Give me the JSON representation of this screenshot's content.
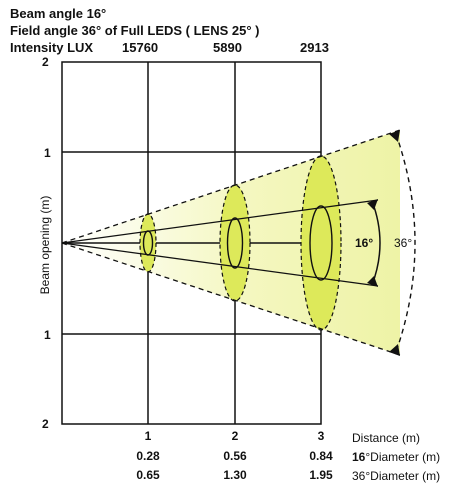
{
  "header": {
    "beam_angle": "Beam angle  16°",
    "field_angle": "Field angle  36°  of Full  LEDS ( LENS 25°  )",
    "intensity_label": "Intensity LUX",
    "lux_values": [
      "15760",
      "5890",
      "2913"
    ]
  },
  "axes": {
    "y_label": "Beam opening (m)",
    "y_ticks_left": [
      "2",
      "1",
      "1",
      "2"
    ],
    "distance_ticks": [
      "1",
      "2",
      "3"
    ]
  },
  "rows": {
    "distance_label": "Distance (m)",
    "beam_diameters": [
      "0.28",
      "0.56",
      "0.84"
    ],
    "beam_angle_bold": "16",
    "beam_diameter_label": "°Diameter (m)",
    "field_diameters": [
      "0.65",
      "1.30",
      "1.95"
    ],
    "field_diameter_label": "36°Diameter (m)"
  },
  "annotations": {
    "inner_angle": "16°",
    "outer_angle": "36°"
  },
  "colors": {
    "beam_fill": "#dde95a",
    "field_fill": "#f6f8c8",
    "line": "#111111"
  },
  "chart_data": {
    "type": "table",
    "columns": [
      "Distance (m)",
      "Intensity LUX",
      "16°Diameter (m)",
      "36°Diameter (m)"
    ],
    "rows": [
      [
        1,
        15760,
        0.28,
        0.65
      ],
      [
        2,
        5890,
        0.56,
        1.3
      ],
      [
        3,
        2913,
        0.84,
        1.95
      ]
    ]
  }
}
